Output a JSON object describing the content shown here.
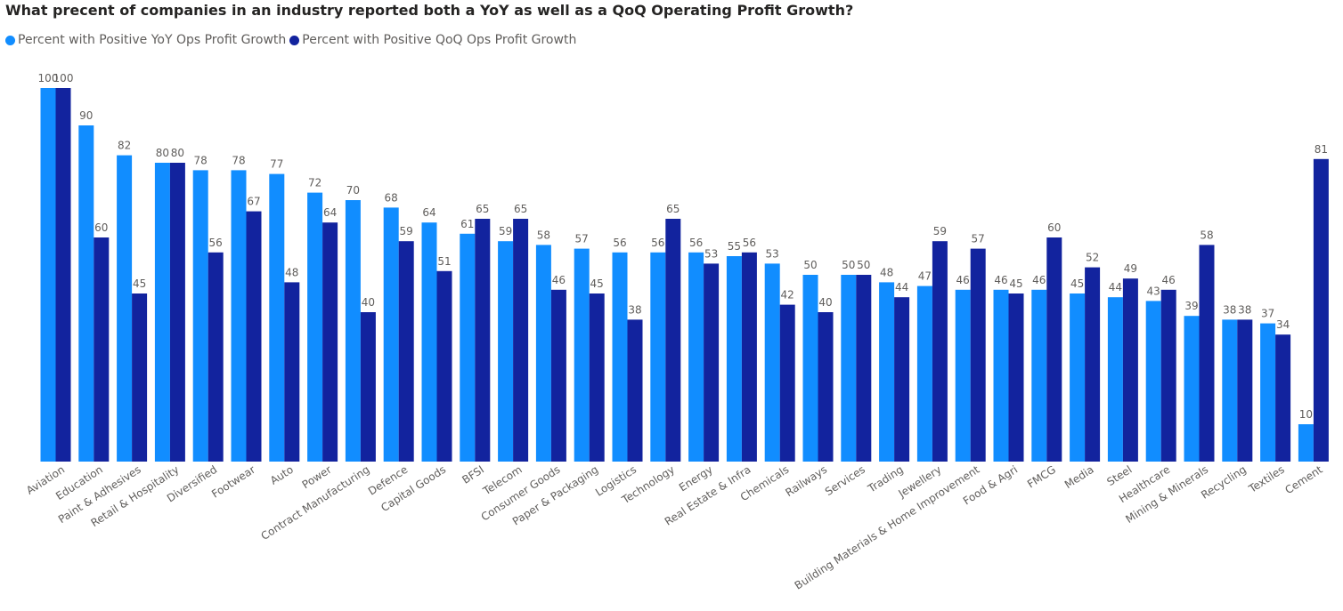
{
  "chart_data": {
    "type": "bar",
    "title": "What precent of companies in an industry reported both a YoY as well as a QoQ Operating Profit Growth?",
    "xlabel": "",
    "ylabel": "",
    "ylim": [
      0,
      100
    ],
    "grid": false,
    "legend_position": "top-left",
    "categories": [
      "Aviation",
      "Education",
      "Paint & Adhesives",
      "Retail & Hospitality",
      "Diversified",
      "Footwear",
      "Auto",
      "Power",
      "Contract Manufacturing",
      "Defence",
      "Capital Goods",
      "BFSI",
      "Telecom",
      "Consumer Goods",
      "Paper & Packaging",
      "Logistics",
      "Technology",
      "Energy",
      "Real Estate & Infra",
      "Chemicals",
      "Railways",
      "Services",
      "Trading",
      "Jewellery",
      "Building Materials & Home Improvement",
      "Food & Agri",
      "FMCG",
      "Media",
      "Steel",
      "Healthcare",
      "Mining & Minerals",
      "Recycling",
      "Textiles",
      "Cement"
    ],
    "series": [
      {
        "name": "Percent with Positive YoY Ops Profit Growth",
        "color": "#118DFF",
        "values": [
          100,
          90,
          82,
          80,
          78,
          78,
          77,
          72,
          70,
          68,
          64,
          61,
          59,
          58,
          57,
          56,
          56,
          56,
          55,
          53,
          50,
          50,
          48,
          47,
          46,
          46,
          46,
          45,
          44,
          43,
          39,
          38,
          37,
          10
        ]
      },
      {
        "name": "Percent with Positive QoQ Ops Profit Growth",
        "color": "#12239E",
        "values": [
          100,
          60,
          45,
          80,
          56,
          67,
          48,
          64,
          40,
          59,
          51,
          65,
          65,
          46,
          45,
          38,
          65,
          53,
          56,
          42,
          40,
          50,
          44,
          59,
          57,
          45,
          60,
          52,
          49,
          46,
          58,
          38,
          34,
          81
        ]
      }
    ]
  }
}
